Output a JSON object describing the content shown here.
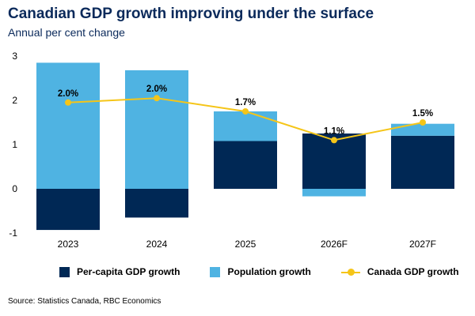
{
  "title": "Canadian GDP growth improving under the surface",
  "subtitle": "Annual per cent change",
  "source": "Source: Statistics Canada, RBC Economics",
  "colors": {
    "per_capita": "#002855",
    "population": "#4fb3e2",
    "gdp_line": "#f5c518"
  },
  "chart_data": {
    "type": "bar",
    "stacked": true,
    "categories": [
      "2023",
      "2024",
      "2025",
      "2026F",
      "2027F"
    ],
    "series": [
      {
        "name": "Per-capita GDP growth",
        "kind": "bar",
        "values": [
          -0.93,
          -0.65,
          1.08,
          1.25,
          1.2
        ]
      },
      {
        "name": "Population growth",
        "kind": "bar",
        "values": [
          2.85,
          2.68,
          0.67,
          -0.17,
          0.27
        ]
      },
      {
        "name": "Canada GDP growth",
        "kind": "line",
        "values": [
          1.95,
          2.05,
          1.75,
          1.1,
          1.5
        ]
      }
    ],
    "data_labels": [
      "2.0%",
      "2.0%",
      "1.7%",
      "1.1%",
      "1.5%"
    ],
    "yticks": [
      "3",
      "2",
      "1",
      "0",
      "-1"
    ],
    "ylim": [
      -1,
      3
    ],
    "legend_position": "bottom"
  }
}
